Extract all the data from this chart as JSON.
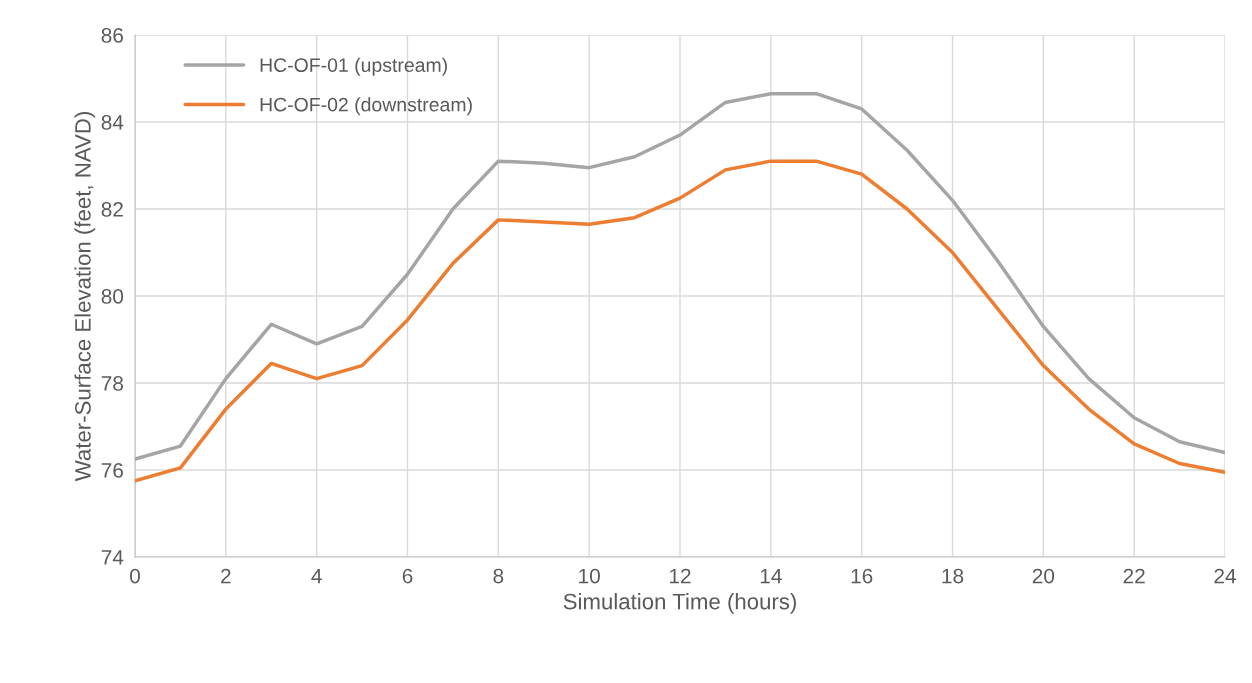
{
  "chart_data": {
    "type": "line",
    "xlabel": "Simulation Time (hours)",
    "ylabel": "Water-Surface Elevation (feet, NAVD)",
    "x": [
      0,
      1,
      2,
      3,
      4,
      5,
      6,
      7,
      8,
      9,
      10,
      11,
      12,
      13,
      14,
      15,
      16,
      17,
      18,
      19,
      20,
      21,
      22,
      23,
      24
    ],
    "series": [
      {
        "name": "HC-OF-01 (upstream)",
        "color": "#a5a5a5",
        "values": [
          76.25,
          76.55,
          78.1,
          79.35,
          78.9,
          79.3,
          80.5,
          82.0,
          83.1,
          83.05,
          82.95,
          83.2,
          83.7,
          84.45,
          84.65,
          84.65,
          84.3,
          83.35,
          82.2,
          80.8,
          79.3,
          78.1,
          77.2,
          76.65,
          76.4
        ]
      },
      {
        "name": "HC-OF-02 (downstream)",
        "color": "#ed7d31",
        "values": [
          75.75,
          76.05,
          77.4,
          78.45,
          78.1,
          78.4,
          79.45,
          80.75,
          81.75,
          81.7,
          81.65,
          81.8,
          82.25,
          82.9,
          83.1,
          83.1,
          82.8,
          82.0,
          81.0,
          79.7,
          78.4,
          77.4,
          76.6,
          76.15,
          75.95
        ]
      }
    ],
    "xlim": [
      0,
      24
    ],
    "xticks": [
      0,
      2,
      4,
      6,
      8,
      10,
      12,
      14,
      16,
      18,
      20,
      22,
      24
    ],
    "ylim": [
      74,
      86
    ],
    "yticks": [
      74,
      76,
      78,
      80,
      82,
      84,
      86
    ],
    "grid": true,
    "legend": "top left",
    "marker": "none",
    "line_style": "solid"
  }
}
